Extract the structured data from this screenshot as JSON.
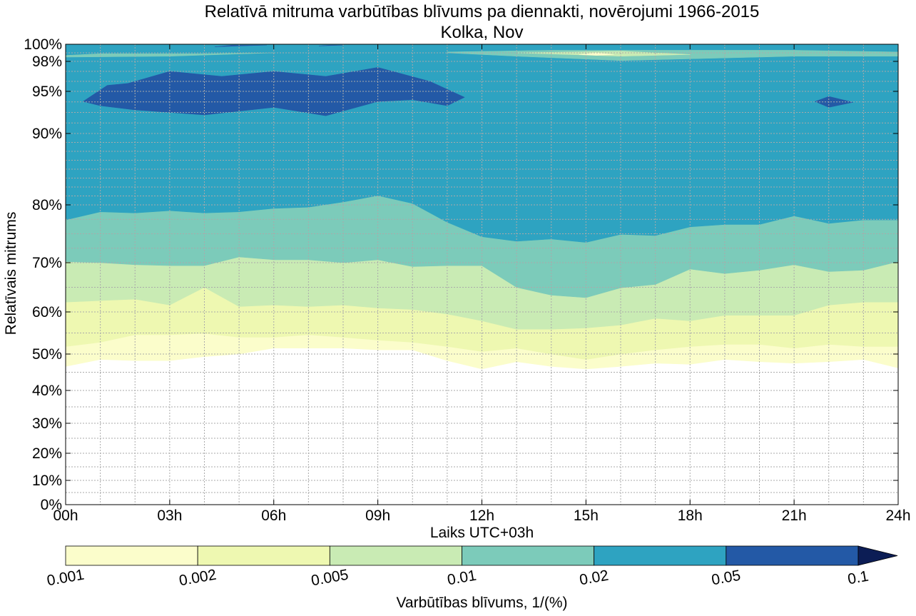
{
  "chart_data": {
    "type": "filled-contour",
    "title": "Relatīvā mitruma varbūtības blīvums pa diennakti, novērojumi 1966-2015",
    "subtitle": "Kolka, Nov",
    "xlabel": "Laiks UTC+03h",
    "ylabel": "Relatīvais mitrums",
    "xlim": [
      0,
      24
    ],
    "x_ticks": [
      {
        "value": 0,
        "label": "00h"
      },
      {
        "value": 3,
        "label": "03h"
      },
      {
        "value": 6,
        "label": "06h"
      },
      {
        "value": 9,
        "label": "09h"
      },
      {
        "value": 12,
        "label": "12h"
      },
      {
        "value": 15,
        "label": "15h"
      },
      {
        "value": 18,
        "label": "18h"
      },
      {
        "value": 21,
        "label": "21h"
      },
      {
        "value": 24,
        "label": "24h"
      }
    ],
    "y_ticks": [
      {
        "value": 0,
        "label": "0%"
      },
      {
        "value": 10,
        "label": "10%"
      },
      {
        "value": 20,
        "label": "20%"
      },
      {
        "value": 30,
        "label": "30%"
      },
      {
        "value": 40,
        "label": "40%"
      },
      {
        "value": 50,
        "label": "50%"
      },
      {
        "value": 60,
        "label": "60%"
      },
      {
        "value": 70,
        "label": "70%"
      },
      {
        "value": 80,
        "label": "80%"
      },
      {
        "value": 90,
        "label": "90%"
      },
      {
        "value": 95,
        "label": "95%"
      },
      {
        "value": 98,
        "label": "98%"
      },
      {
        "value": 100,
        "label": "100%"
      }
    ],
    "y_scale": "nonlinear (expanded near 100%)",
    "grid": true,
    "x_times": [
      0,
      1,
      2,
      3,
      4,
      5,
      6,
      7,
      8,
      9,
      10,
      11,
      12,
      13,
      14,
      15,
      16,
      17,
      18,
      19,
      20,
      21,
      22,
      23,
      24
    ],
    "levels": [
      {
        "name": "≥0.001",
        "lower": [
          46.6,
          48.5,
          48.2,
          48.2,
          49.3,
          50.0,
          51.4,
          51.4,
          51.4,
          51.0,
          51.0,
          48.2,
          45.9,
          47.9,
          46.6,
          45.9,
          46.6,
          47.5,
          47.2,
          48.5,
          47.9,
          47.5,
          47.9,
          48.5,
          46.2
        ]
      },
      {
        "name": "≥0.002",
        "lower": [
          51.8,
          52.8,
          54.6,
          54.6,
          54.9,
          54.0,
          54.0,
          54.6,
          54.0,
          53.3,
          52.8,
          51.8,
          50.6,
          51.4,
          50.0,
          48.5,
          50.0,
          51.0,
          51.8,
          52.3,
          52.3,
          51.4,
          52.3,
          51.8,
          51.8
        ]
      },
      {
        "name": "≥0.005",
        "lower": [
          62.0,
          62.3,
          62.6,
          61.4,
          65.0,
          61.1,
          61.4,
          61.1,
          61.4,
          60.8,
          60.5,
          59.5,
          57.9,
          55.9,
          55.9,
          56.2,
          56.9,
          58.5,
          57.9,
          59.2,
          59.2,
          59.2,
          61.4,
          62.0,
          62.0
        ]
      },
      {
        "name": "≥0.01",
        "lower": [
          70.2,
          70.0,
          69.6,
          69.4,
          69.4,
          71.0,
          70.5,
          70.5,
          70.0,
          70.5,
          69.2,
          69.4,
          69.4,
          65.0,
          63.4,
          62.9,
          64.9,
          65.6,
          68.7,
          67.8,
          68.5,
          69.6,
          68.2,
          68.5,
          70.2
        ]
      },
      {
        "name": "≥0.02",
        "lower": [
          77.4,
          78.8,
          78.6,
          79.0,
          78.6,
          78.8,
          79.4,
          79.6,
          80.4,
          81.3,
          80.2,
          77.0,
          74.5,
          73.7,
          74.1,
          73.5,
          74.9,
          74.7,
          76.2,
          76.6,
          76.6,
          78.1,
          76.8,
          77.4,
          77.4
        ]
      },
      {
        "name": "≥0.05",
        "note": "main band ~90–97%, small island near 22h ~93%, thin fragments at the top near 06h and 09h"
      },
      {
        "name": "≥0.1",
        "note": "not reached"
      }
    ],
    "colorbar": {
      "label": "Varbūtības blīvums, 1/(%)",
      "ticks": [
        "0.001",
        "0.002",
        "0.005",
        "0.01",
        "0.02",
        "0.05",
        "0.1"
      ],
      "colors": [
        "#fbfdcb",
        "#eef8b1",
        "#c9ebb4",
        "#7ccbba",
        "#2ea3c1",
        "#2359a6",
        "#0c1d55"
      ],
      "extend": "max"
    },
    "background": "#ffffff",
    "grid_color": "#aaaaaa"
  }
}
